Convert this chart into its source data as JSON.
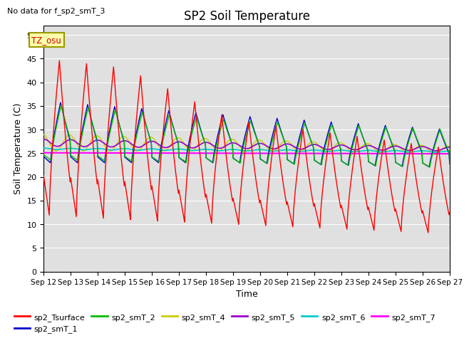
{
  "title": "SP2 Soil Temperature",
  "no_data_text": "No data for f_sp2_smT_3",
  "ylabel": "Soil Temperature (C)",
  "xlabel": "Time",
  "tz_label": "TZ_osu",
  "ylim": [
    0,
    52
  ],
  "yticks": [
    0,
    5,
    10,
    15,
    20,
    25,
    30,
    35,
    40,
    45,
    50
  ],
  "xtick_labels": [
    "Sep 12",
    "Sep 13",
    "Sep 14",
    "Sep 15",
    "Sep 16",
    "Sep 17",
    "Sep 18",
    "Sep 19",
    "Sep 20",
    "Sep 21",
    "Sep 22",
    "Sep 23",
    "Sep 24",
    "Sep 25",
    "Sep 26",
    "Sep 27"
  ],
  "bg_color": "#e0e0e0",
  "fig_color": "#ffffff",
  "colors": {
    "sp2_Tsurface": "#ff0000",
    "sp2_smT_1": "#0000cc",
    "sp2_smT_2": "#00bb00",
    "sp2_smT_4": "#cccc00",
    "sp2_smT_5": "#9900cc",
    "sp2_smT_6": "#00cccc",
    "sp2_smT_7": "#ff00ff"
  }
}
